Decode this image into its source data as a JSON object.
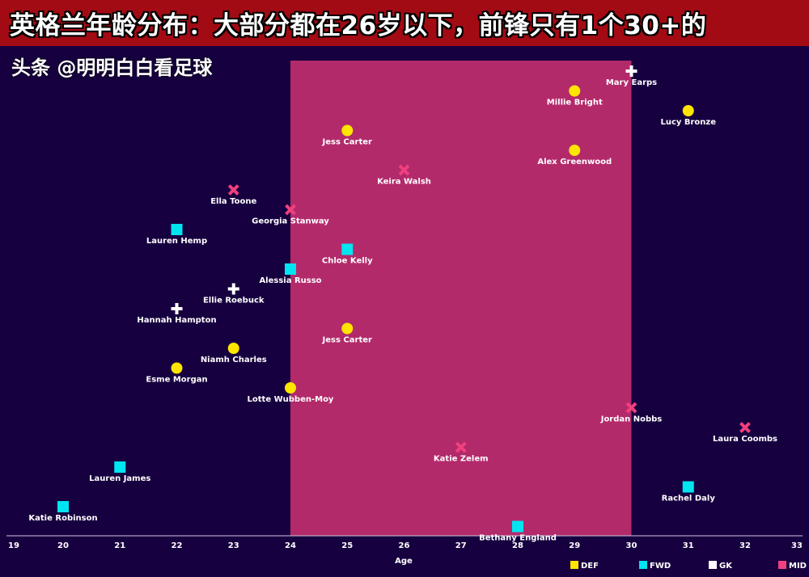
{
  "header": {
    "title": "英格兰年龄分布：大部分都在26岁以下，前锋只有1个30+的"
  },
  "watermark": "头条 @明明白白看足球",
  "colors": {
    "background": "#170040",
    "title_bar": "#a30b14",
    "highlight_band": "#b32a6b",
    "DEF": "#ffe600",
    "FWD": "#00e5f0",
    "GK": "#ffffff",
    "MID": "#f0407e"
  },
  "chart_data": {
    "type": "scatter",
    "title": "英格兰年龄分布：大部分都在26岁以下，前锋只有1个30+的",
    "xlabel": "Age",
    "ylabel": "",
    "xlim": [
      19,
      33
    ],
    "xticks": [
      19,
      20,
      21,
      22,
      23,
      24,
      25,
      26,
      27,
      28,
      29,
      30,
      31,
      32,
      33
    ],
    "highlight_range": [
      24,
      30
    ],
    "grid": false,
    "legend": {
      "placement": "bottom-right",
      "entries": [
        "DEF",
        "FWD",
        "GK",
        "MID"
      ]
    },
    "markers": {
      "DEF": "circle",
      "FWD": "square",
      "GK": "plus",
      "MID": "cross"
    },
    "points": [
      {
        "name": "Mary Earps",
        "age": 30,
        "position": "GK"
      },
      {
        "name": "Millie Bright",
        "age": 29,
        "position": "DEF"
      },
      {
        "name": "Lucy Bronze",
        "age": 31,
        "position": "DEF"
      },
      {
        "name": "Jess Carter",
        "age": 25,
        "position": "DEF"
      },
      {
        "name": "Alex Greenwood",
        "age": 29,
        "position": "DEF"
      },
      {
        "name": "Keira Walsh",
        "age": 26,
        "position": "MID"
      },
      {
        "name": "Ella Toone",
        "age": 23,
        "position": "MID"
      },
      {
        "name": "Georgia Stanway",
        "age": 24,
        "position": "MID"
      },
      {
        "name": "Lauren Hemp",
        "age": 22,
        "position": "FWD"
      },
      {
        "name": "Chloe Kelly",
        "age": 25,
        "position": "FWD"
      },
      {
        "name": "Alessia Russo",
        "age": 24,
        "position": "FWD"
      },
      {
        "name": "Ellie Roebuck",
        "age": 23,
        "position": "GK"
      },
      {
        "name": "Hannah Hampton",
        "age": 22,
        "position": "GK"
      },
      {
        "name": "Jess Carter",
        "age": 25,
        "position": "DEF"
      },
      {
        "name": "Niamh Charles",
        "age": 23,
        "position": "DEF"
      },
      {
        "name": "Esme Morgan",
        "age": 22,
        "position": "DEF"
      },
      {
        "name": "Lotte Wubben-Moy",
        "age": 24,
        "position": "DEF"
      },
      {
        "name": "Jordan Nobbs",
        "age": 30,
        "position": "MID"
      },
      {
        "name": "Laura Coombs",
        "age": 32,
        "position": "MID"
      },
      {
        "name": "Katie Zelem",
        "age": 27,
        "position": "MID"
      },
      {
        "name": "Lauren James",
        "age": 21,
        "position": "FWD"
      },
      {
        "name": "Rachel Daly",
        "age": 31,
        "position": "FWD"
      },
      {
        "name": "Katie Robinson",
        "age": 20,
        "position": "FWD"
      },
      {
        "name": "Bethany England",
        "age": 28,
        "position": "FWD"
      }
    ]
  }
}
